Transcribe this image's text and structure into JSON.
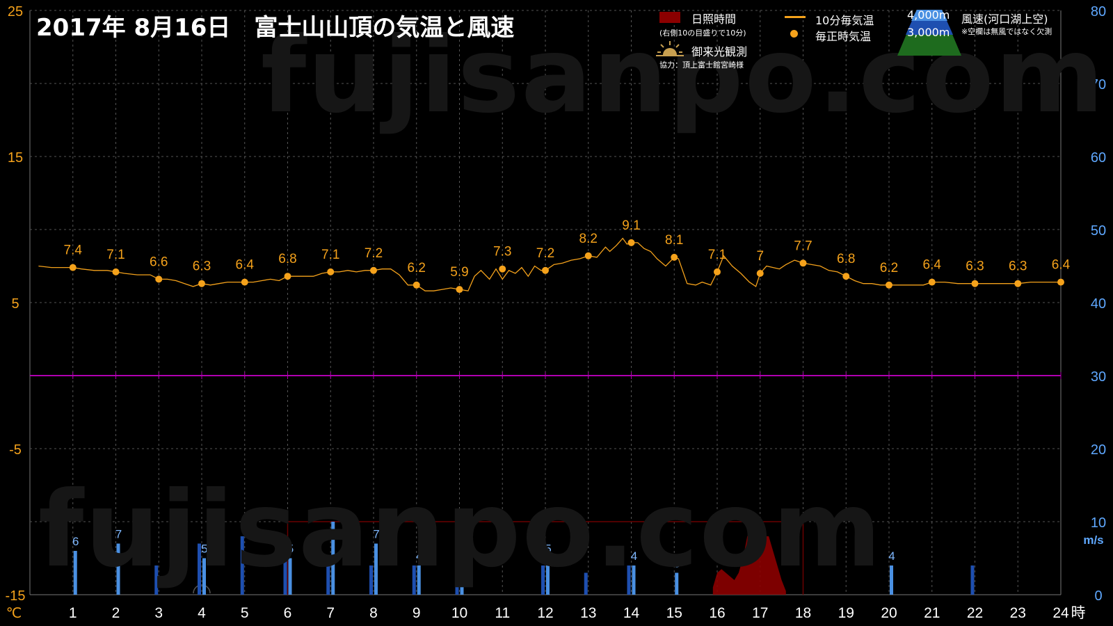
{
  "title": "2017年  8月16日　富士山山頂の気温と風速",
  "watermark": "fujisanpo.com",
  "legend": {
    "sunshine": "日照時間",
    "sunshine_note": "(右側10の目盛りで10分)",
    "goraiko": "御来光観測",
    "cooperation": "協力：頂上富士館宮崎様",
    "temp_10min": "10分毎気温",
    "temp_hourly": "毎正時気温",
    "alt_4000": "4,000m",
    "alt_3000": "3,000m",
    "wind": "風速(河口湖上空)",
    "wind_note": "※空欄は無風ではなく欠測"
  },
  "colors": {
    "temp_line": "#f5a21b",
    "temp_axis": "#f5a21b",
    "wind_axis": "#5fa8ff",
    "wind_4000": "#4a90e2",
    "wind_3000": "#1e4fb0",
    "sunshine": "#8b0000",
    "zero_line": "#b000b0",
    "grid": "#555555"
  },
  "chart_data": {
    "type": "line",
    "xlabel": "時",
    "x_ticks": [
      "1",
      "2",
      "3",
      "4",
      "5",
      "6",
      "7",
      "8",
      "9",
      "10",
      "11",
      "12",
      "13",
      "14",
      "15",
      "16",
      "17",
      "18",
      "19",
      "20",
      "21",
      "22",
      "23",
      "24"
    ],
    "y_left": {
      "label": "℃",
      "ylim": [
        -15,
        25
      ],
      "ticks": [
        "25",
        "15",
        "5",
        "-5",
        "-15"
      ]
    },
    "y_right": {
      "label": "m/s",
      "ylim": [
        0,
        80
      ],
      "ticks": [
        "80",
        "70",
        "60",
        "50",
        "40",
        "30",
        "20",
        "10",
        "0"
      ]
    },
    "hourly_temp": {
      "hours": [
        1,
        2,
        3,
        4,
        5,
        6,
        7,
        8,
        9,
        10,
        11,
        12,
        13,
        14,
        15,
        16,
        17,
        18,
        19,
        20,
        21,
        22,
        23,
        24
      ],
      "values": [
        7.4,
        7.1,
        6.6,
        6.3,
        6.4,
        6.8,
        7.1,
        7.2,
        6.2,
        5.9,
        7.3,
        7.2,
        8.2,
        9.1,
        8.1,
        7.1,
        7,
        7.7,
        6.8,
        6.2,
        6.4,
        6.3,
        6.3,
        6.4
      ],
      "labels": [
        "7.4",
        "7.1",
        "6.6",
        "6.3",
        "6.4",
        "6.8",
        "7.1",
        "7.2",
        "6.2",
        "5.9",
        "7.3",
        "7.2",
        "8.2",
        "9.1",
        "8.1",
        "7.1",
        "7",
        "7.7",
        "6.8",
        "6.2",
        "6.4",
        "6.3",
        "6.3",
        "6.4"
      ],
      "label_visible": [
        true,
        true,
        true,
        true,
        true,
        true,
        true,
        true,
        true,
        true,
        true,
        true,
        true,
        true,
        true,
        true,
        true,
        true,
        true,
        true,
        true,
        true,
        true,
        true
      ]
    },
    "temp_10min": {
      "hours": [
        0.2,
        0.5,
        0.8,
        1,
        1.2,
        1.5,
        1.8,
        2,
        2.2,
        2.5,
        2.8,
        3,
        3.2,
        3.4,
        3.6,
        3.8,
        4,
        4.2,
        4.4,
        4.6,
        4.8,
        5,
        5.2,
        5.4,
        5.6,
        5.8,
        6,
        6.2,
        6.4,
        6.6,
        6.8,
        7,
        7.2,
        7.4,
        7.6,
        7.8,
        8,
        8.2,
        8.4,
        8.6,
        8.8,
        9,
        9.2,
        9.4,
        9.6,
        9.8,
        10,
        10.2,
        10.35,
        10.5,
        10.7,
        10.85,
        11,
        11.15,
        11.3,
        11.45,
        11.6,
        11.75,
        11.9,
        12,
        12.2,
        12.4,
        12.6,
        12.8,
        13,
        13.2,
        13.4,
        13.5,
        13.65,
        13.8,
        13.9,
        14,
        14.15,
        14.3,
        14.45,
        14.6,
        14.8,
        15,
        15.1,
        15.3,
        15.5,
        15.65,
        15.85,
        16,
        16.15,
        16.35,
        16.55,
        16.75,
        16.9,
        17,
        17.15,
        17.3,
        17.45,
        17.6,
        17.8,
        18,
        18.2,
        18.4,
        18.6,
        18.8,
        19,
        19.2,
        19.4,
        19.6,
        19.8,
        20,
        20.3,
        20.6,
        20.8,
        21,
        21.3,
        21.6,
        22,
        22.3,
        22.6,
        23,
        23.3,
        23.6,
        24
      ],
      "values": [
        7.5,
        7.4,
        7.4,
        7.4,
        7.3,
        7.2,
        7.2,
        7.1,
        7.0,
        6.9,
        6.9,
        6.6,
        6.6,
        6.5,
        6.3,
        6.1,
        6.3,
        6.2,
        6.3,
        6.4,
        6.4,
        6.4,
        6.4,
        6.5,
        6.6,
        6.5,
        6.8,
        6.8,
        6.8,
        6.8,
        7.0,
        7.1,
        7.1,
        7.2,
        7.1,
        7.2,
        7.2,
        7.3,
        7.3,
        6.9,
        6.2,
        6.2,
        5.8,
        5.8,
        5.9,
        6.0,
        5.9,
        5.8,
        6.8,
        7.2,
        6.6,
        7.3,
        6.6,
        7.2,
        7.0,
        7.4,
        6.8,
        7.5,
        7.2,
        7.2,
        7.6,
        7.7,
        7.9,
        8.0,
        8.2,
        8.1,
        8.8,
        8.5,
        8.9,
        9.4,
        9.0,
        9.1,
        9.1,
        8.7,
        8.5,
        8.0,
        7.5,
        8.1,
        8.0,
        6.3,
        6.2,
        6.4,
        6.2,
        7.1,
        8.2,
        7.5,
        7.0,
        6.4,
        6.1,
        7.0,
        7.5,
        7.4,
        7.3,
        7.6,
        7.9,
        7.7,
        7.6,
        7.5,
        7.2,
        7.1,
        6.8,
        6.5,
        6.3,
        6.3,
        6.2,
        6.2,
        6.2,
        6.2,
        6.2,
        6.4,
        6.4,
        6.3,
        6.3,
        6.3,
        6.3,
        6.3,
        6.4,
        6.4,
        6.4
      ]
    },
    "wind_4000": {
      "hours": [
        1,
        2,
        4,
        6,
        7,
        8,
        9,
        10,
        12,
        14,
        15,
        20
      ],
      "values": [
        6,
        7,
        5,
        5,
        10,
        7,
        4,
        4,
        5,
        4,
        3,
        4
      ],
      "labels": [
        "6",
        "7",
        "5",
        "5",
        "10",
        "7",
        "4",
        "4",
        "5",
        "4",
        "3",
        "4"
      ]
    },
    "wind_3000": {
      "hours": [
        3,
        4,
        5,
        6,
        7,
        8,
        9,
        10,
        12,
        13,
        14,
        22
      ],
      "values": [
        4,
        7,
        8,
        7,
        5,
        4,
        4,
        5,
        4,
        3,
        4,
        4
      ]
    },
    "sunshine": {
      "hours": [
        15.9,
        16.0,
        16.1,
        16.2,
        16.3,
        16.4,
        16.5,
        16.6,
        16.7,
        16.8,
        16.9,
        17.0,
        17.1,
        17.2,
        17.3,
        17.4,
        17.5,
        17.6
      ],
      "minutes": [
        1,
        3,
        3.5,
        3,
        2.5,
        2,
        3,
        5,
        8,
        9,
        8.5,
        8,
        8,
        8,
        6,
        4,
        2,
        0.5
      ]
    },
    "sunshine_bracket": {
      "from": 6,
      "to": 18,
      "level": 10
    },
    "goraiko_hour": 4
  }
}
